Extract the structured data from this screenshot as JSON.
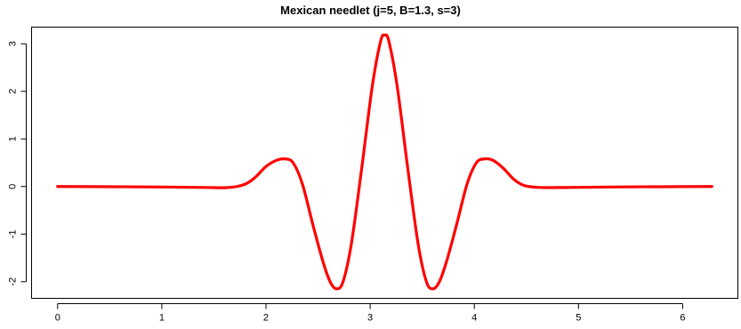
{
  "chart_data": {
    "type": "line",
    "title": "Mexican needlet (j=5, B=1.3, s=3)",
    "xlabel": "",
    "ylabel": "",
    "xlim": [
      -0.25,
      6.53
    ],
    "ylim": [
      -2.35,
      3.35
    ],
    "x_ticks": [
      0,
      1,
      2,
      3,
      4,
      5,
      6
    ],
    "y_ticks": [
      -2,
      -1,
      0,
      1,
      2,
      3
    ],
    "grid": false,
    "legend": "none",
    "series": [
      {
        "color": "#ff0000",
        "x": [
          0,
          0.5,
          1.0,
          1.4,
          1.65,
          1.8,
          1.9,
          2.0,
          2.1,
          2.18,
          2.26,
          2.35,
          2.45,
          2.55,
          2.62,
          2.68,
          2.74,
          2.82,
          2.92,
          3.02,
          3.1,
          3.14,
          3.18,
          3.26,
          3.36,
          3.46,
          3.54,
          3.6,
          3.66,
          3.73,
          3.83,
          3.93,
          4.02,
          4.1,
          4.18,
          4.28,
          4.38,
          4.48,
          4.63,
          4.9,
          5.3,
          5.8,
          6.28
        ],
        "y": [
          0.0,
          -0.004,
          -0.01,
          -0.02,
          -0.02,
          0.05,
          0.2,
          0.42,
          0.55,
          0.58,
          0.5,
          0.05,
          -0.8,
          -1.6,
          -2.02,
          -2.15,
          -2.0,
          -1.2,
          0.4,
          2.1,
          3.05,
          3.18,
          3.05,
          2.1,
          0.4,
          -1.2,
          -2.0,
          -2.15,
          -2.02,
          -1.6,
          -0.8,
          0.05,
          0.5,
          0.58,
          0.55,
          0.38,
          0.15,
          0.02,
          -0.02,
          -0.02,
          -0.01,
          -0.004,
          0.0
        ]
      }
    ]
  }
}
